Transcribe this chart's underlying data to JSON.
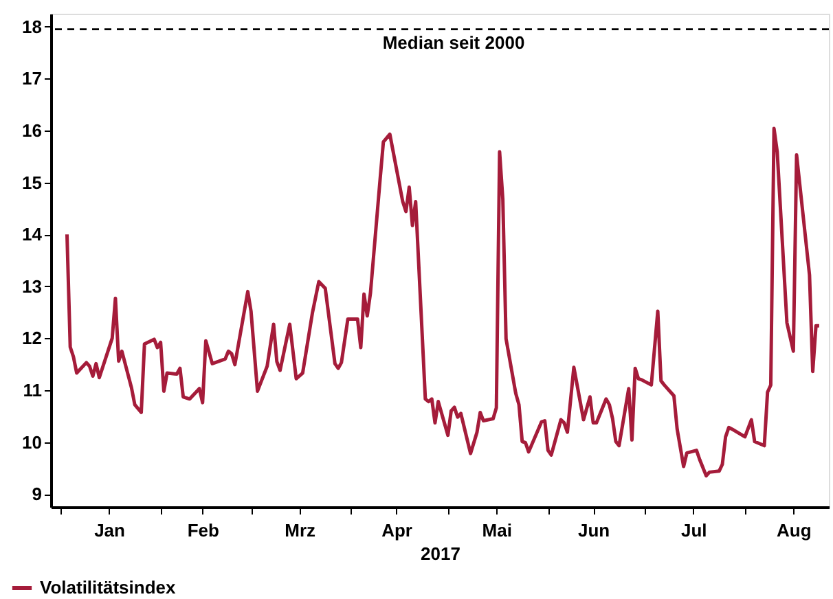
{
  "chart_data": {
    "type": "line",
    "xlabel": "2017",
    "x": [
      "2017-01-03",
      "2017-01-04",
      "2017-01-05",
      "2017-01-06",
      "2017-01-09",
      "2017-01-10",
      "2017-01-11",
      "2017-01-12",
      "2017-01-13",
      "2017-01-17",
      "2017-01-18",
      "2017-01-19",
      "2017-01-20",
      "2017-01-23",
      "2017-01-24",
      "2017-01-26",
      "2017-01-27",
      "2017-01-30",
      "2017-01-31",
      "2017-02-01",
      "2017-02-02",
      "2017-02-03",
      "2017-02-06",
      "2017-02-07",
      "2017-02-08",
      "2017-02-10",
      "2017-02-13",
      "2017-02-14",
      "2017-02-15",
      "2017-02-17",
      "2017-02-21",
      "2017-02-22",
      "2017-02-23",
      "2017-02-24",
      "2017-02-28",
      "2017-03-01",
      "2017-03-03",
      "2017-03-06",
      "2017-03-08",
      "2017-03-09",
      "2017-03-10",
      "2017-03-13",
      "2017-03-15",
      "2017-03-17",
      "2017-03-20",
      "2017-03-22",
      "2017-03-24",
      "2017-03-27",
      "2017-03-28",
      "2017-03-29",
      "2017-03-31",
      "2017-04-03",
      "2017-04-04",
      "2017-04-05",
      "2017-04-06",
      "2017-04-07",
      "2017-04-10",
      "2017-04-11",
      "2017-04-13",
      "2017-04-17",
      "2017-04-18",
      "2017-04-19",
      "2017-04-20",
      "2017-04-21",
      "2017-04-24",
      "2017-04-25",
      "2017-04-26",
      "2017-04-27",
      "2017-04-28",
      "2017-05-01",
      "2017-05-02",
      "2017-05-03",
      "2017-05-04",
      "2017-05-05",
      "2017-05-08",
      "2017-05-10",
      "2017-05-11",
      "2017-05-12",
      "2017-05-15",
      "2017-05-16",
      "2017-05-17",
      "2017-05-18",
      "2017-05-19",
      "2017-05-22",
      "2017-05-23",
      "2017-05-24",
      "2017-05-25",
      "2017-05-26",
      "2017-05-30",
      "2017-05-31",
      "2017-06-01",
      "2017-06-02",
      "2017-06-05",
      "2017-06-06",
      "2017-06-07",
      "2017-06-09",
      "2017-06-12",
      "2017-06-14",
      "2017-06-15",
      "2017-06-16",
      "2017-06-19",
      "2017-06-20",
      "2017-06-21",
      "2017-06-22",
      "2017-06-23",
      "2017-06-26",
      "2017-06-27",
      "2017-06-28",
      "2017-06-29",
      "2017-06-30",
      "2017-07-03",
      "2017-07-05",
      "2017-07-06",
      "2017-07-07",
      "2017-07-10",
      "2017-07-11",
      "2017-07-13",
      "2017-07-14",
      "2017-07-17",
      "2017-07-18",
      "2017-07-20",
      "2017-07-21",
      "2017-07-24",
      "2017-07-25",
      "2017-07-26",
      "2017-07-27",
      "2017-07-28",
      "2017-08-01",
      "2017-08-03",
      "2017-08-04",
      "2017-08-07",
      "2017-08-08",
      "2017-08-09",
      "2017-08-10",
      "2017-08-11",
      "2017-08-14",
      "2017-08-16",
      "2017-08-17",
      "2017-08-21",
      "2017-08-22",
      "2017-08-23",
      "2017-08-24"
    ],
    "series": [
      {
        "name": "Volatilitätsindex",
        "color": "#a51c3a",
        "type": "line",
        "values": [
          14.0,
          11.83,
          11.64,
          11.33,
          11.53,
          11.46,
          11.27,
          11.51,
          11.24,
          12.0,
          12.77,
          11.56,
          11.75,
          11.04,
          10.72,
          10.57,
          11.89,
          11.98,
          11.82,
          11.92,
          10.98,
          11.33,
          11.31,
          11.42,
          10.87,
          10.83,
          11.03,
          10.76,
          11.95,
          11.51,
          11.6,
          11.75,
          11.7,
          11.49,
          12.9,
          12.52,
          10.98,
          11.46,
          12.27,
          11.55,
          11.38,
          12.27,
          11.22,
          11.33,
          12.48,
          13.09,
          12.96,
          11.51,
          11.42,
          11.53,
          12.37,
          12.37,
          11.82,
          12.85,
          12.43,
          12.87,
          15.07,
          15.78,
          15.93,
          14.63,
          14.44,
          14.91,
          14.17,
          14.63,
          10.83,
          10.78,
          10.83,
          10.37,
          10.78,
          10.13,
          10.6,
          10.67,
          10.48,
          10.55,
          9.78,
          10.19,
          10.57,
          10.41,
          10.45,
          10.66,
          15.59,
          14.68,
          11.99,
          10.94,
          10.72,
          10.01,
          9.99,
          9.81,
          10.39,
          10.41,
          9.84,
          9.75,
          10.43,
          10.37,
          10.19,
          11.44,
          10.43,
          10.87,
          10.37,
          10.37,
          10.83,
          10.72,
          10.45,
          10.01,
          9.93,
          11.03,
          10.04,
          11.42,
          11.22,
          11.2,
          11.1,
          12.52,
          11.18,
          11.1,
          10.89,
          10.25,
          9.53,
          9.79,
          9.84,
          9.66,
          9.35,
          9.42,
          9.44,
          9.57,
          10.1,
          10.28,
          10.25,
          10.1,
          10.43,
          10.01,
          9.93,
          10.96,
          11.1,
          16.04,
          15.59,
          12.3,
          11.75,
          15.53,
          13.22,
          11.36,
          12.24,
          12.24
        ]
      }
    ],
    "xlim": [
      "2016-12-29",
      "2017-08-27"
    ],
    "xticks": [
      {
        "value": "2017-01-01",
        "label": null
      },
      {
        "value": "2017-01-16",
        "label": "Jan"
      },
      {
        "value": "2017-02-01",
        "label": null
      },
      {
        "value": "2017-02-14",
        "label": "Feb"
      },
      {
        "value": "2017-03-01",
        "label": null
      },
      {
        "value": "2017-03-16",
        "label": "Mrz"
      },
      {
        "value": "2017-04-01",
        "label": null
      },
      {
        "value": "2017-04-15",
        "label": "Apr"
      },
      {
        "value": "2017-05-01",
        "label": null
      },
      {
        "value": "2017-05-16",
        "label": "Mai"
      },
      {
        "value": "2017-06-01",
        "label": null
      },
      {
        "value": "2017-06-15",
        "label": "Jun"
      },
      {
        "value": "2017-07-01",
        "label": null
      },
      {
        "value": "2017-07-16",
        "label": "Jul"
      },
      {
        "value": "2017-08-01",
        "label": null
      },
      {
        "value": "2017-08-16",
        "label": "Aug"
      }
    ],
    "ylim": [
      8.75,
      18.25
    ],
    "yticks": [
      9,
      10,
      11,
      12,
      13,
      14,
      15,
      16,
      17,
      18
    ],
    "ref_lines": [
      {
        "axis": "y",
        "value": 17.95,
        "label": "Median seit 2000",
        "color": "#000000",
        "line_style": "dashed"
      }
    ],
    "grid": false,
    "legend": "bottom left",
    "marker": "none",
    "line_style": "solid"
  }
}
